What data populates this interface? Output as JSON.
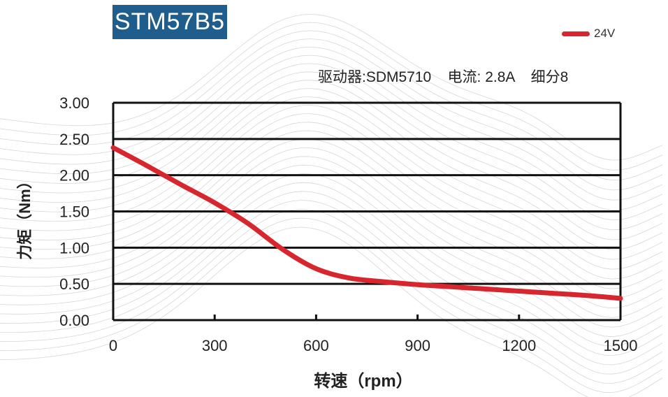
{
  "title": "STM57B5",
  "info_line": "驱动器:SDM5710    电流: 2.8A    细分8",
  "colors": {
    "title_bg": "#1f5e8c",
    "curve": "#d7262e",
    "grid": "#111111"
  },
  "chart_data": {
    "type": "line",
    "xlabel": "转速（rpm）",
    "ylabel": "力矩（Nm）",
    "xlim": [
      0,
      1500
    ],
    "ylim": [
      0,
      3
    ],
    "x_ticks": [
      "0",
      "300",
      "600",
      "900",
      "1200",
      "1500"
    ],
    "y_ticks": [
      "0.00",
      "0.50",
      "1.00",
      "1.50",
      "2.00",
      "2.50",
      "3.00"
    ],
    "grid": "horizontal",
    "legend_position": "top-right",
    "series": [
      {
        "name": "24V",
        "color": "#d7262e",
        "x": [
          0,
          100,
          200,
          300,
          400,
          500,
          600,
          700,
          800,
          900,
          1000,
          1100,
          1200,
          1300,
          1400,
          1500
        ],
        "y": [
          2.38,
          2.13,
          1.87,
          1.62,
          1.33,
          0.98,
          0.71,
          0.58,
          0.53,
          0.49,
          0.46,
          0.43,
          0.4,
          0.37,
          0.34,
          0.3
        ]
      }
    ]
  }
}
